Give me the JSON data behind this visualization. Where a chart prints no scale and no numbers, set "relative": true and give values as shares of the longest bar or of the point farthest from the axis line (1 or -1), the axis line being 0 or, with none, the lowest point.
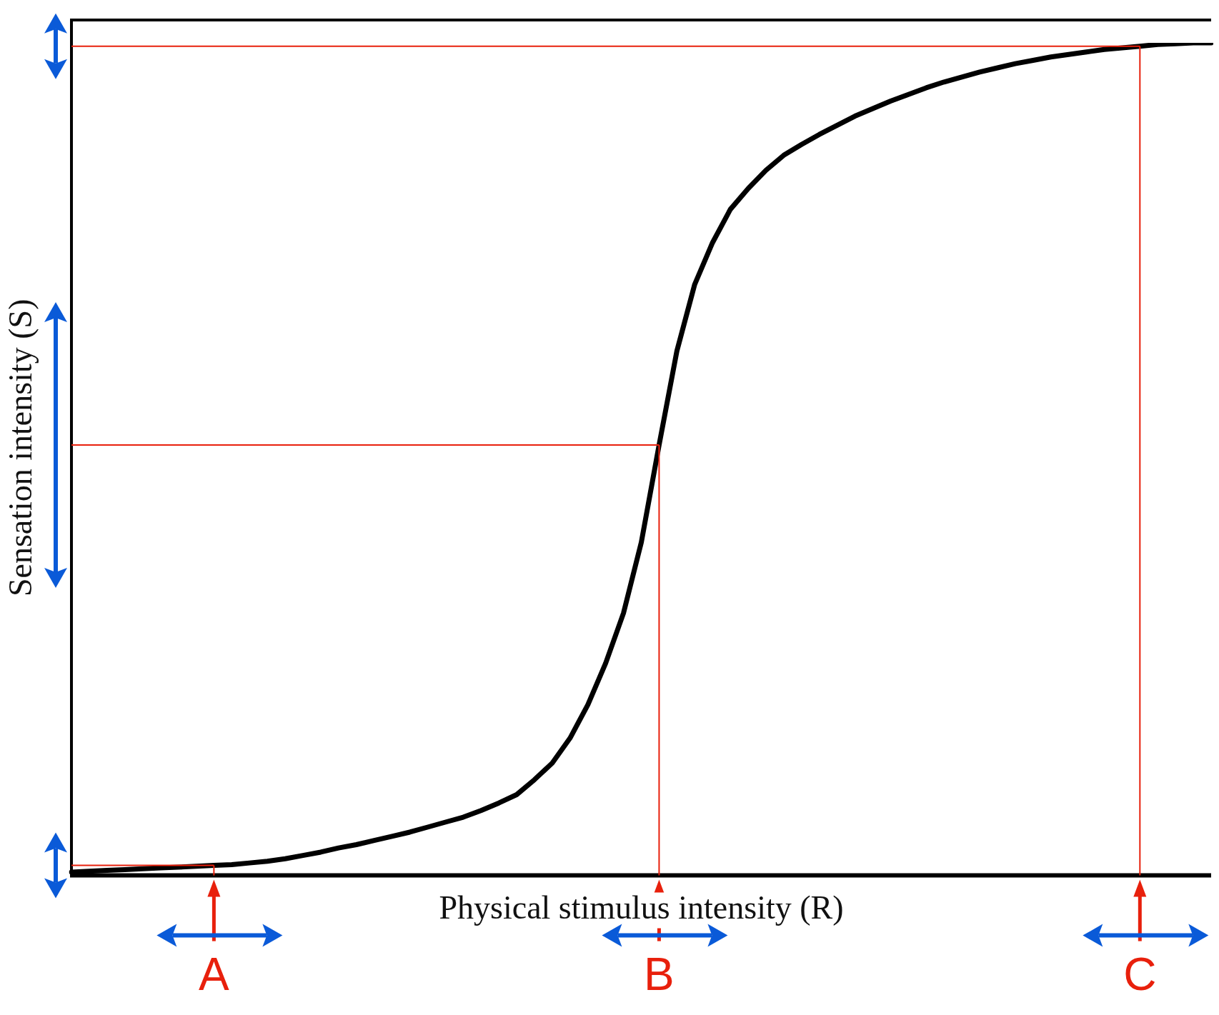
{
  "chart_data": {
    "type": "line",
    "xlabel": "Physical stimulus intensity (R)",
    "ylabel": "Sensation intensity (S)",
    "relative": true,
    "categories": [
      null,
      null,
      null,
      null,
      null,
      null,
      null,
      null,
      null,
      null,
      null,
      null,
      null,
      null,
      null,
      null,
      null,
      null,
      null,
      null,
      null,
      null,
      null,
      null,
      null,
      null,
      null,
      null,
      null,
      null,
      null,
      null,
      null,
      null,
      null,
      null,
      null,
      null,
      null,
      null,
      null,
      null,
      null,
      null,
      null,
      null,
      null,
      null,
      null,
      null,
      null,
      null,
      null,
      null,
      null,
      null,
      null,
      null,
      null,
      null,
      null,
      null,
      null,
      null,
      null
    ],
    "series": [
      {
        "color": "#000000",
        "values": [
          0.004,
          0.005,
          0.006,
          0.007,
          0.008,
          0.009,
          0.01,
          0.011,
          0.012,
          0.013,
          0.015,
          0.017,
          0.02,
          0.024,
          0.028,
          0.033,
          0.037,
          0.042,
          0.047,
          0.052,
          0.058,
          0.064,
          0.07,
          0.078,
          0.087,
          0.097,
          0.115,
          0.135,
          0.165,
          0.205,
          0.255,
          0.315,
          0.4,
          0.517,
          0.63,
          0.71,
          0.76,
          0.8,
          0.825,
          0.847,
          0.865,
          0.878,
          0.89,
          0.901,
          0.912,
          0.921,
          0.93,
          0.938,
          0.946,
          0.953,
          0.959,
          0.965,
          0.97,
          0.975,
          0.979,
          0.983,
          0.986,
          0.989,
          0.992,
          0.994,
          0.996,
          0.998,
          0.999,
          1,
          1
        ]
      }
    ],
    "annotations": [
      "A",
      "B",
      "C"
    ],
    "ref_lines": [
      {
        "axis": "y",
        "value": 0.012,
        "color": "#e8200c"
      },
      {
        "axis": "y",
        "value": 0.517,
        "color": "#e8200c"
      },
      {
        "axis": "y",
        "value": 0.996,
        "color": "#e8200c"
      }
    ],
    "grid": false,
    "legend": false,
    "marker": "none",
    "line_style": "solid"
  }
}
